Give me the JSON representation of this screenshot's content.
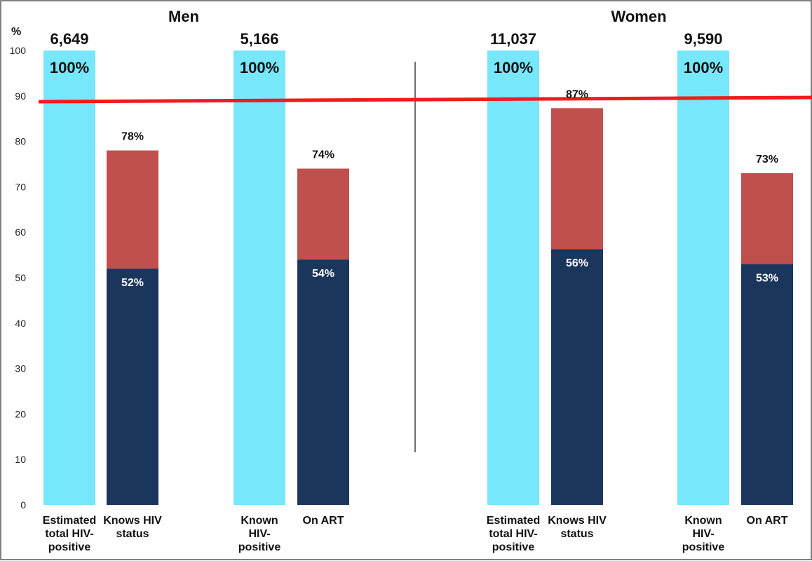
{
  "chart_data": {
    "type": "bar",
    "y_unit_label": "%",
    "ylim": [
      0,
      100
    ],
    "yticks": [
      0,
      10,
      20,
      30,
      40,
      50,
      60,
      70,
      80,
      90,
      100
    ],
    "grid": false,
    "reference_line": {
      "value": 89,
      "color": "#ee1c1c"
    },
    "colors": {
      "total": "#77e7fc",
      "lower": "#1b365d",
      "upper": "#c0504d"
    },
    "groups": [
      {
        "title": "Men",
        "bars": [
          {
            "lines": [
              "Estimated",
              "total HIV-",
              "positive"
            ],
            "kind": "total",
            "value": 100,
            "count_label": "6,649",
            "pct_label": "100%"
          },
          {
            "lines": [
              "Knows HIV",
              "status"
            ],
            "kind": "stacked",
            "lower": 52,
            "total": 78,
            "lower_label": "52%",
            "total_label": "78%"
          },
          {
            "lines": [
              "Known",
              "HIV-",
              "positive"
            ],
            "kind": "total",
            "value": 100,
            "count_label": "5,166",
            "pct_label": "100%"
          },
          {
            "lines": [
              "On ART"
            ],
            "kind": "stacked",
            "lower": 54,
            "total": 74,
            "lower_label": "54%",
            "total_label": "74%"
          }
        ]
      },
      {
        "title": "Women",
        "bars": [
          {
            "lines": [
              "Estimated",
              "total HIV-",
              "positive"
            ],
            "kind": "total",
            "value": 100,
            "count_label": "11,037",
            "pct_label": "100%"
          },
          {
            "lines": [
              "Knows HIV",
              "status"
            ],
            "kind": "stacked",
            "lower": 56.3,
            "total": 87.3,
            "lower_label": "56%",
            "total_label": "87%"
          },
          {
            "lines": [
              "Known",
              "HIV-",
              "positive"
            ],
            "kind": "total",
            "value": 100,
            "count_label": "9,590",
            "pct_label": "100%"
          },
          {
            "lines": [
              "On ART"
            ],
            "kind": "stacked",
            "lower": 53,
            "total": 73,
            "lower_label": "53%",
            "total_label": "73%"
          }
        ]
      }
    ]
  }
}
